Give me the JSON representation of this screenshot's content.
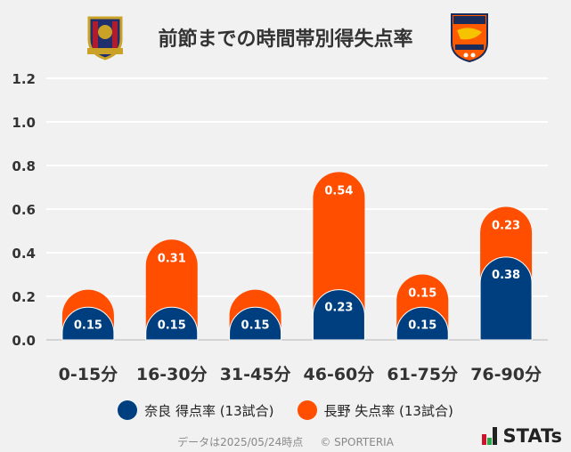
{
  "title": "前節までの時間帯別得失点率",
  "legend": {
    "nara": "奈良 得点率 (13試合)",
    "nagano": "長野 失点率 (13試合)"
  },
  "footer": {
    "date": "データは2025/05/24時点",
    "copyright": "© SPORTERIA"
  },
  "brand": "STATs",
  "logos": {
    "home": "NARA club crest",
    "away": "AC NAGANO PARCEIRO"
  },
  "colors": {
    "nara": "#003f7f",
    "nagano": "#ff4e00",
    "grid": "#ffffff",
    "background": "#f1f1f1"
  },
  "chart_data": {
    "type": "bar",
    "stacked": true,
    "categories": [
      "0-15分",
      "16-30分",
      "31-45分",
      "46-60分",
      "61-75分",
      "76-90分"
    ],
    "series": [
      {
        "name": "奈良 得点率 (13試合)",
        "values": [
          0.15,
          0.15,
          0.15,
          0.23,
          0.15,
          0.38
        ],
        "labels": [
          "0.15",
          "0.15",
          "0.15",
          "0.23",
          "0.15",
          "0.38"
        ]
      },
      {
        "name": "長野 失点率 (13試合)",
        "values": [
          0.08,
          0.31,
          0.08,
          0.54,
          0.15,
          0.23
        ],
        "labels": [
          "",
          "0.31",
          "",
          "0.54",
          "0.15",
          "0.23"
        ]
      }
    ],
    "ylim": [
      0,
      1.2
    ],
    "yticks": [
      "0.0",
      "0.2",
      "0.4",
      "0.6",
      "0.8",
      "1.0",
      "1.2"
    ],
    "grid": true,
    "legend_position": "bottom"
  }
}
